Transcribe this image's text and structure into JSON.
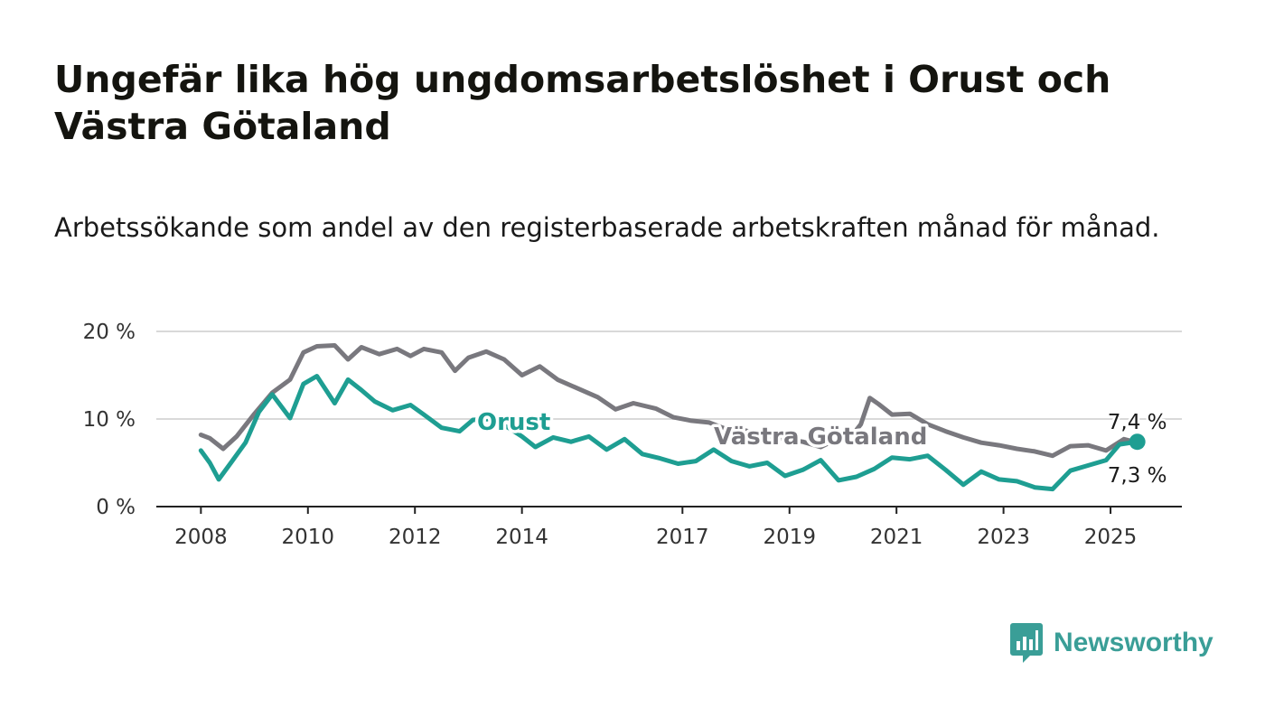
{
  "title": "Ungefär lika hög ungdomsarbetslöshet i Orust och Västra Götaland",
  "subtitle": "Arbetssökande som andel av den registerbaserade arbetskraften månad för månad.",
  "brand": {
    "name": "Newsworthy",
    "icon": "bar-chart-speech-bubble-icon",
    "color": "#3a9e97"
  },
  "chart_data": {
    "type": "line",
    "x_axis": {
      "type": "time",
      "ticks": [
        "2008",
        "2010",
        "2012",
        "2014",
        "2017",
        "2019",
        "2021",
        "2023",
        "2025"
      ],
      "range": [
        "2007-03",
        "2026-05"
      ]
    },
    "y_axis": {
      "ticks": [
        "0 %",
        "10 %",
        "20 %"
      ],
      "ylim": [
        0,
        20
      ],
      "unit": "%"
    },
    "grid": true,
    "series": [
      {
        "name": "Västra Götaland",
        "color": "#79787e",
        "end_label": "7,3 %",
        "x": [
          "2008-01",
          "2008-03",
          "2008-06",
          "2008-09",
          "2009-01",
          "2009-05",
          "2009-09",
          "2009-12",
          "2010-03",
          "2010-07",
          "2010-10",
          "2011-01",
          "2011-05",
          "2011-09",
          "2011-12",
          "2012-03",
          "2012-07",
          "2012-10",
          "2013-01",
          "2013-05",
          "2013-09",
          "2014-01",
          "2014-05",
          "2014-09",
          "2015-01",
          "2015-06",
          "2015-10",
          "2016-02",
          "2016-07",
          "2016-11",
          "2017-03",
          "2017-07",
          "2017-11",
          "2018-03",
          "2018-08",
          "2018-12",
          "2019-04",
          "2019-08",
          "2019-12",
          "2020-03",
          "2020-05",
          "2020-07",
          "2020-09",
          "2020-12",
          "2021-04",
          "2021-08",
          "2021-12",
          "2022-04",
          "2022-08",
          "2022-12",
          "2023-04",
          "2023-08",
          "2023-12",
          "2024-04",
          "2024-08",
          "2024-12",
          "2025-04",
          "2025-07"
        ],
        "values": [
          8.2,
          7.8,
          6.6,
          8.0,
          10.6,
          13.0,
          14.5,
          17.6,
          18.3,
          18.4,
          16.8,
          18.2,
          17.4,
          18.0,
          17.2,
          18.0,
          17.6,
          15.5,
          17.0,
          17.7,
          16.8,
          15.0,
          16.0,
          14.5,
          13.6,
          12.5,
          11.1,
          11.8,
          11.2,
          10.2,
          9.8,
          9.6,
          8.8,
          8.7,
          8.0,
          7.7,
          7.4,
          6.8,
          7.8,
          8.1,
          9.4,
          12.4,
          11.7,
          10.5,
          10.6,
          9.4,
          8.6,
          7.9,
          7.3,
          7.0,
          6.6,
          6.3,
          5.8,
          6.9,
          7.0,
          6.4,
          7.7,
          7.3
        ]
      },
      {
        "name": "Orust",
        "color": "#1e9e92",
        "end_label": "7,4 %",
        "x": [
          "2008-01",
          "2008-03",
          "2008-05",
          "2008-08",
          "2008-11",
          "2009-02",
          "2009-05",
          "2009-09",
          "2009-12",
          "2010-03",
          "2010-07",
          "2010-10",
          "2011-01",
          "2011-04",
          "2011-08",
          "2011-12",
          "2012-03",
          "2012-07",
          "2012-11",
          "2013-02",
          "2013-06",
          "2013-10",
          "2014-01",
          "2014-04",
          "2014-08",
          "2014-12",
          "2015-04",
          "2015-08",
          "2015-12",
          "2016-04",
          "2016-08",
          "2016-12",
          "2017-04",
          "2017-08",
          "2017-12",
          "2018-04",
          "2018-08",
          "2018-12",
          "2019-04",
          "2019-08",
          "2019-12",
          "2020-04",
          "2020-08",
          "2020-12",
          "2021-04",
          "2021-08",
          "2021-12",
          "2022-04",
          "2022-08",
          "2022-12",
          "2023-04",
          "2023-08",
          "2023-12",
          "2024-04",
          "2024-08",
          "2024-12",
          "2025-03",
          "2025-07"
        ],
        "values": [
          6.4,
          5.0,
          3.1,
          5.2,
          7.3,
          10.8,
          12.8,
          10.1,
          14.0,
          14.9,
          11.8,
          14.5,
          13.3,
          12.0,
          11.0,
          11.6,
          10.5,
          9.0,
          8.6,
          9.9,
          10.0,
          9.0,
          8.0,
          6.8,
          7.9,
          7.4,
          8.0,
          6.5,
          7.7,
          6.0,
          5.5,
          4.9,
          5.2,
          6.5,
          5.2,
          4.6,
          5.0,
          3.5,
          4.2,
          5.3,
          3.0,
          3.4,
          4.3,
          5.6,
          5.4,
          5.8,
          4.2,
          2.5,
          4.0,
          3.1,
          2.9,
          2.2,
          2.0,
          4.1,
          4.7,
          5.3,
          7.1,
          7.4
        ]
      }
    ]
  }
}
